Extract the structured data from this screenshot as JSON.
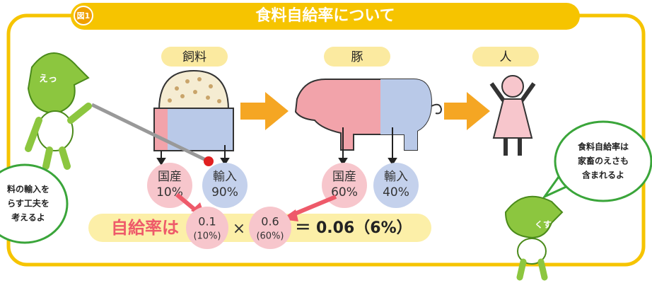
{
  "header": {
    "figure_label": "図1",
    "title": "食料自給率について"
  },
  "stages": [
    {
      "label": "飼料"
    },
    {
      "label": "豚"
    },
    {
      "label": "人"
    }
  ],
  "breakdowns": [
    {
      "label": "国産",
      "share": "10%"
    },
    {
      "label": "輸入",
      "share": "90%"
    },
    {
      "label": "国産",
      "share": "60%"
    },
    {
      "label": "輸入",
      "share": "40%"
    }
  ],
  "formula": {
    "lead": "自給率は",
    "factors": [
      {
        "value": "0.1",
        "percent": "(10%)"
      },
      {
        "value": "0.6",
        "percent": "(60%)"
      }
    ],
    "operator": "×",
    "result": "＝ 0.06（6%）"
  },
  "speech_bubbles": [
    {
      "lines": [
        "料の輸入を",
        "らす工夫を",
        "考えるよ"
      ]
    },
    {
      "lines": [
        "食料自給率は",
        "家畜のえさも",
        "含まれるよ"
      ]
    }
  ],
  "characters": [
    {
      "label": "えっ"
    },
    {
      "label": "くす"
    }
  ]
}
